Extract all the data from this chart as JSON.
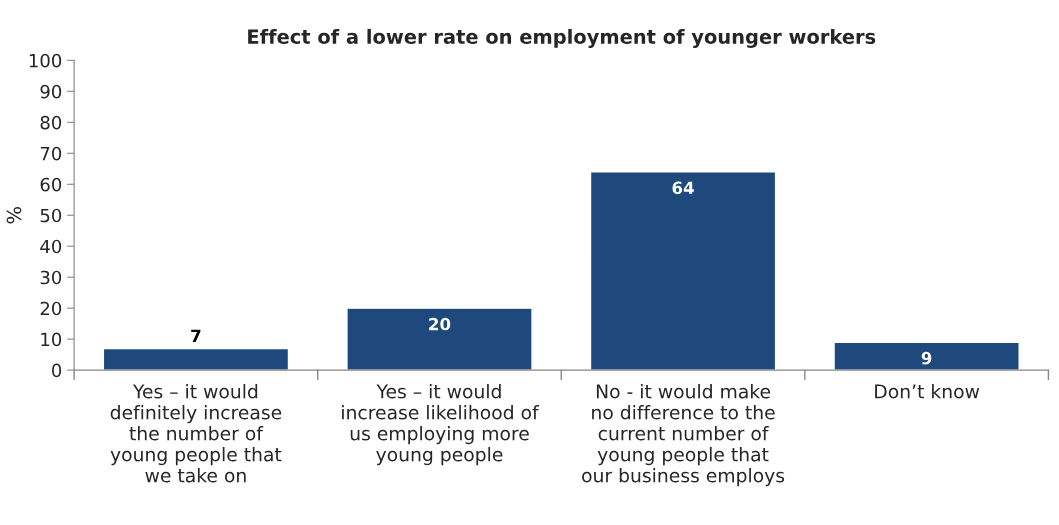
{
  "chart_data": {
    "type": "bar",
    "title": "Effect of a lower rate on employment of younger workers",
    "ylabel": "%",
    "categories": [
      "Yes – it would\ndefinitely increase\nthe number of\nyoung people that\nwe take on",
      "Yes – it would\nincrease likelihood of\nus employing more\nyoung people",
      "No - it would make\nno difference to the\ncurrent number of\nyoung people that\nour business employs",
      "Don’t know"
    ],
    "values": [
      7,
      20,
      64,
      9
    ],
    "color": "#1f497d",
    "ylim": [
      0,
      100
    ],
    "yticks": [
      0,
      10,
      20,
      30,
      40,
      50,
      60,
      70,
      80,
      90,
      100
    ],
    "data_labels": true,
    "grid": false,
    "legend": false
  }
}
